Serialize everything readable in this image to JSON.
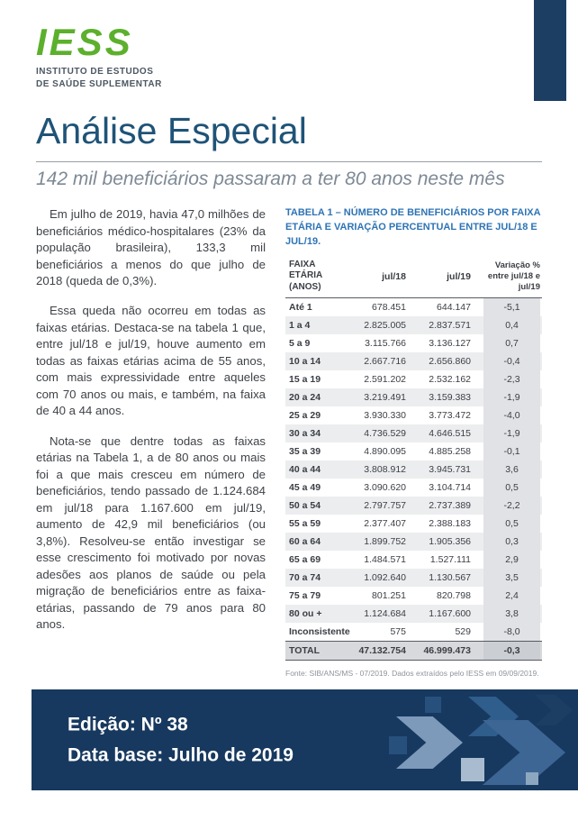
{
  "logo": {
    "name": "IESS",
    "subtitle_line1": "INSTITUTO DE ESTUDOS",
    "subtitle_line2": "DE SAÚDE SUPLEMENTAR"
  },
  "header": {
    "title": "Análise Especial",
    "subtitle": "142 mil beneficiários passaram a ter 80 anos neste mês"
  },
  "article": {
    "paragraphs": [
      "Em julho de 2019, havia 47,0 milhões de beneficiários médico-hospitalares (23% da população brasileira),  133,3 mil beneficiários a menos do que julho de 2018 (queda de 0,3%).",
      "Essa queda não ocorreu em todas as faixas etárias. Destaca-se na tabela 1 que, entre jul/18 e jul/19, houve aumento em todas as faixas etárias acima de 55 anos, com mais expressividade entre aqueles com 70 anos ou mais, e também, na faixa de 40 a 44 anos.",
      "Nota-se que  dentre todas as faixas etárias na Tabela 1, a de 80 anos ou mais foi a que mais cresceu em número de beneficiários, tendo passado de 1.124.684 em jul/18 para 1.167.600 em jul/19, aumento de 42,9 mil beneficiários (ou 3,8%). Resolveu-se então investigar se esse crescimento foi motivado por novas adesões aos planos de saúde ou pela migração de beneficiários entre as faixa-etárias, passando de 79 anos para 80 anos."
    ]
  },
  "table": {
    "title": "TABELA 1 – NÚMERO DE BENEFICIÁRIOS POR FAIXA ETÁRIA E VARIAÇÃO PERCENTUAL ENTRE JUL/18 E JUL/19.",
    "columns": [
      "FAIXA ETÁRIA (ANOS)",
      "jul/18",
      "jul/19",
      "Variação % entre jul/18 e jul/19"
    ],
    "rows": [
      [
        "Até 1",
        "678.451",
        "644.147",
        "-5,1"
      ],
      [
        "1 a 4",
        "2.825.005",
        "2.837.571",
        "0,4"
      ],
      [
        "5 a 9",
        "3.115.766",
        "3.136.127",
        "0,7"
      ],
      [
        "10 a 14",
        "2.667.716",
        "2.656.860",
        "-0,4"
      ],
      [
        "15 a 19",
        "2.591.202",
        "2.532.162",
        "-2,3"
      ],
      [
        "20 a 24",
        "3.219.491",
        "3.159.383",
        "-1,9"
      ],
      [
        "25 a 29",
        "3.930.330",
        "3.773.472",
        "-4,0"
      ],
      [
        "30 a 34",
        "4.736.529",
        "4.646.515",
        "-1,9"
      ],
      [
        "35 a 39",
        "4.890.095",
        "4.885.258",
        "-0,1"
      ],
      [
        "40 a 44",
        "3.808.912",
        "3.945.731",
        "3,6"
      ],
      [
        "45 a 49",
        "3.090.620",
        "3.104.714",
        "0,5"
      ],
      [
        "50 a 54",
        "2.797.757",
        "2.737.389",
        "-2,2"
      ],
      [
        "55 a 59",
        "2.377.407",
        "2.388.183",
        "0,5"
      ],
      [
        "60 a 64",
        "1.899.752",
        "1.905.356",
        "0,3"
      ],
      [
        "65 a 69",
        "1.484.571",
        "1.527.111",
        "2,9"
      ],
      [
        "70 a 74",
        "1.092.640",
        "1.130.567",
        "3,5"
      ],
      [
        "75 a 79",
        "801.251",
        "820.798",
        "2,4"
      ],
      [
        "80 ou +",
        "1.124.684",
        "1.167.600",
        "3,8"
      ],
      [
        "Inconsistente",
        "575",
        "529",
        "-8,0"
      ],
      [
        "TOTAL",
        "47.132.754",
        "46.999.473",
        "-0,3"
      ]
    ],
    "source": "Fonte: SIB/ANS/MS - 07/2019. Dados extraídos pelo IESS em 09/09/2019."
  },
  "footer": {
    "edition": "Edição: Nº 38",
    "database": "Data base: Julho de 2019"
  },
  "colors": {
    "brand_green": "#5CB02C",
    "navy": "#17395F",
    "title_blue": "#1F5377",
    "table_title_blue": "#2E74B5"
  }
}
